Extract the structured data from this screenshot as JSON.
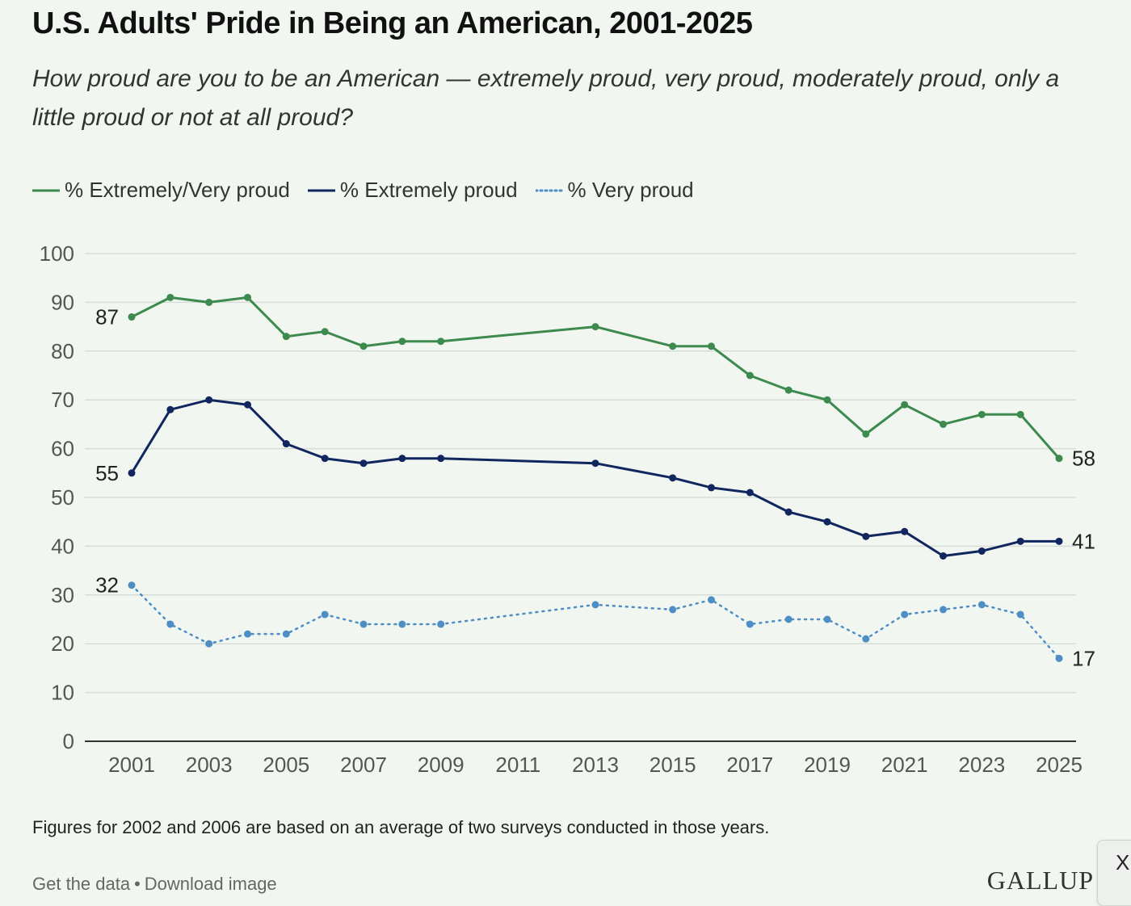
{
  "header": {
    "title": "U.S. Adults' Pride in Being an American, 2001-2025",
    "subtitle": "How proud are you to be an American — extremely proud, very proud, moderately proud, only a little proud or not at all proud?"
  },
  "colors": {
    "extremely_very": "#3c8a4e",
    "extremely": "#11265e",
    "very": "#4f8ec4",
    "grid": "#d6ddd7",
    "background": "#f1f6f1"
  },
  "chart_data": {
    "type": "line",
    "title": "U.S. Adults' Pride in Being an American, 2001-2025",
    "xlabel": "",
    "ylabel": "",
    "xlim": [
      2001,
      2025
    ],
    "ylim": [
      0,
      100
    ],
    "y_ticks": [
      0,
      10,
      20,
      30,
      40,
      50,
      60,
      70,
      80,
      90,
      100
    ],
    "x_ticks": [
      2001,
      2003,
      2005,
      2007,
      2009,
      2011,
      2013,
      2015,
      2017,
      2019,
      2021,
      2023,
      2025
    ],
    "grid": true,
    "legend_position": "top-left",
    "series": [
      {
        "name": "% Extremely/Very proud",
        "style": "solid",
        "color": "#3c8a4e",
        "x": [
          2001,
          2002,
          2003,
          2004,
          2005,
          2006,
          2007,
          2008,
          2009,
          2013,
          2015,
          2016,
          2017,
          2018,
          2019,
          2020,
          2021,
          2022,
          2023,
          2024,
          2025
        ],
        "y": [
          87,
          91,
          90,
          91,
          83,
          84,
          81,
          82,
          82,
          85,
          81,
          81,
          75,
          72,
          70,
          63,
          69,
          65,
          67,
          67,
          58
        ],
        "start_label": "87",
        "end_label": "58"
      },
      {
        "name": "% Extremely proud",
        "style": "solid",
        "color": "#11265e",
        "x": [
          2001,
          2002,
          2003,
          2004,
          2005,
          2006,
          2007,
          2008,
          2009,
          2013,
          2015,
          2016,
          2017,
          2018,
          2019,
          2020,
          2021,
          2022,
          2023,
          2024,
          2025
        ],
        "y": [
          55,
          68,
          70,
          69,
          61,
          58,
          57,
          58,
          58,
          57,
          54,
          52,
          51,
          47,
          45,
          42,
          43,
          38,
          39,
          41,
          41
        ],
        "start_label": "55",
        "end_label": "41"
      },
      {
        "name": "% Very proud",
        "style": "dotted",
        "color": "#4f8ec4",
        "x": [
          2001,
          2002,
          2003,
          2004,
          2005,
          2006,
          2007,
          2008,
          2009,
          2013,
          2015,
          2016,
          2017,
          2018,
          2019,
          2020,
          2021,
          2022,
          2023,
          2024,
          2025
        ],
        "y": [
          32,
          24,
          20,
          22,
          22,
          26,
          24,
          24,
          24,
          28,
          27,
          29,
          24,
          25,
          25,
          21,
          26,
          27,
          28,
          26,
          17
        ],
        "start_label": "32",
        "end_label": "17"
      }
    ]
  },
  "footnote": "Figures for 2002 and 2006 are based on an average of two surveys conducted in those years.",
  "footer": {
    "get_data": "Get the data",
    "separator": "•",
    "download": "Download image",
    "brand": "GALLUP",
    "close": "X"
  }
}
